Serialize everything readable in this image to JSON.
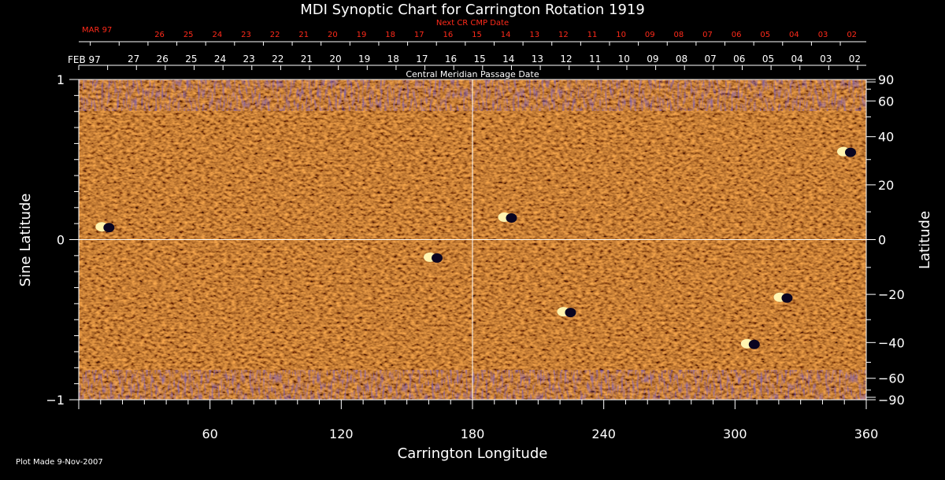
{
  "chart_data": {
    "type": "heatmap",
    "title": "MDI Synoptic Chart for Carrington Rotation 1919",
    "xlabel": "Carrington Longitude",
    "ylabel_left": "Sine Latitude",
    "ylabel_right": "Latitude",
    "xlim": [
      0,
      360
    ],
    "ylim": [
      -1,
      1
    ],
    "x_ticks": [
      {
        "value": 60,
        "label": "60"
      },
      {
        "value": 120,
        "label": "120"
      },
      {
        "value": 180,
        "label": "180"
      },
      {
        "value": 240,
        "label": "240"
      },
      {
        "value": 300,
        "label": "300"
      },
      {
        "value": 360,
        "label": "360"
      }
    ],
    "y_ticks_left": [
      {
        "value": 1,
        "label": "1"
      },
      {
        "value": 0,
        "label": "0"
      },
      {
        "value": -1,
        "label": "−1"
      }
    ],
    "y_ticks_right": [
      {
        "value": 90,
        "label": "90"
      },
      {
        "value": 60,
        "label": "60"
      },
      {
        "value": 40,
        "label": "40"
      },
      {
        "value": 20,
        "label": "20"
      },
      {
        "value": 0,
        "label": "0"
      },
      {
        "value": -20,
        "label": "−20"
      },
      {
        "value": -40,
        "label": "−40"
      },
      {
        "value": -60,
        "label": "−60"
      },
      {
        "value": -90,
        "label": "−90"
      }
    ],
    "top_axis_label": "Central Meridian Passage Date",
    "top_axis_month": "FEB 97",
    "top_axis_days": [
      "27",
      "26",
      "25",
      "24",
      "23",
      "22",
      "21",
      "20",
      "19",
      "18",
      "17",
      "16",
      "15",
      "14",
      "13",
      "12",
      "11",
      "10",
      "09",
      "08",
      "07",
      "06",
      "05",
      "04",
      "03",
      "02"
    ],
    "next_cr_label": "Next CR CMP Date",
    "next_cr_month": "MAR 97",
    "next_cr_days": [
      "26",
      "25",
      "24",
      "23",
      "22",
      "21",
      "20",
      "19",
      "18",
      "17",
      "16",
      "15",
      "14",
      "13",
      "12",
      "11",
      "10",
      "09",
      "08",
      "07",
      "06",
      "05",
      "04",
      "03",
      "02"
    ],
    "active_regions": [
      {
        "lon": 12,
        "sinlat": 0.08
      },
      {
        "lon": 196,
        "sinlat": 0.14
      },
      {
        "lon": 351,
        "sinlat": 0.55
      },
      {
        "lon": 162,
        "sinlat": -0.11
      },
      {
        "lon": 223,
        "sinlat": -0.45
      },
      {
        "lon": 322,
        "sinlat": -0.36
      },
      {
        "lon": 307,
        "sinlat": -0.65
      }
    ],
    "colors": {
      "background": "#000000",
      "map_base": "#e8601a",
      "negative": "#2a1f6e",
      "positive": "#fff4b0",
      "guide_lines": "#ffffff",
      "next_cr_text": "#ff2a1a"
    },
    "grid": false
  },
  "footer": {
    "plot_made": "Plot Made  9-Nov-2007"
  }
}
